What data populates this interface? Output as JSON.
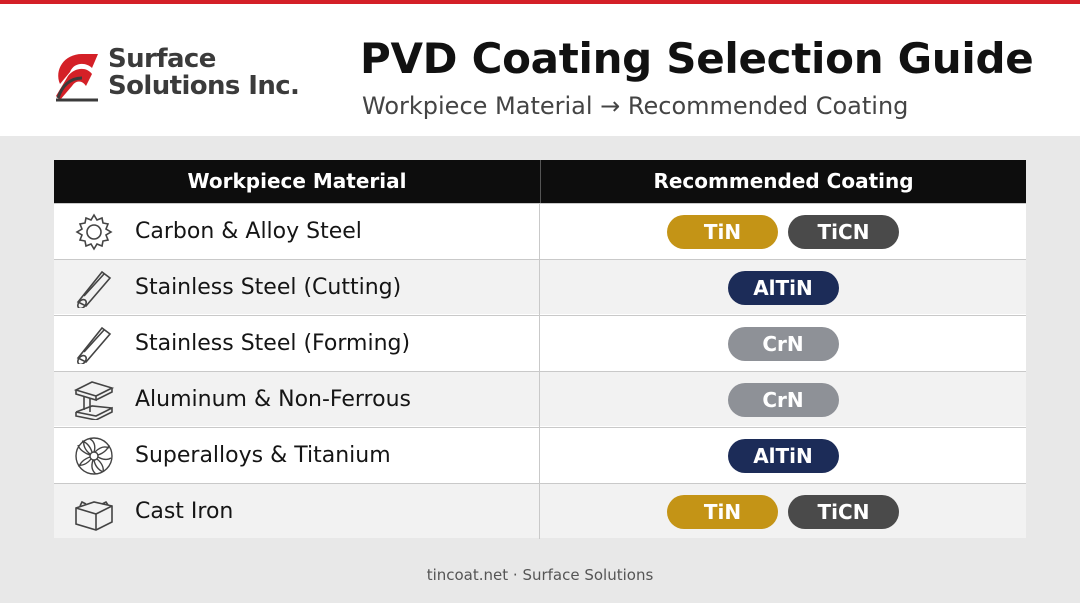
{
  "brand": {
    "name_line1": "Surface",
    "name_line2": "Solutions Inc.",
    "logo_color": "#d42027"
  },
  "header": {
    "title": "PVD Coating Selection Guide",
    "subtitle": "Workpiece Material → Recommended Coating"
  },
  "table": {
    "col_material": "Workpiece Material",
    "col_coating": "Recommended Coating",
    "rows": [
      {
        "icon": "gear-icon",
        "material": "Carbon & Alloy Steel",
        "coatings": [
          "TiN",
          "TiCN"
        ]
      },
      {
        "icon": "rod-icon",
        "material": "Stainless Steel (Cutting)",
        "coatings": [
          "AlTiN"
        ]
      },
      {
        "icon": "rod-icon",
        "material": "Stainless Steel (Forming)",
        "coatings": [
          "CrN"
        ]
      },
      {
        "icon": "i-beam-icon",
        "material": "Aluminum & Non-Ferrous",
        "coatings": [
          "CrN"
        ]
      },
      {
        "icon": "turbine-icon",
        "material": "Superalloys & Titanium",
        "coatings": [
          "AlTiN"
        ]
      },
      {
        "icon": "block-icon",
        "material": "Cast Iron",
        "coatings": [
          "TiN",
          "TiCN"
        ]
      }
    ]
  },
  "coating_colors": {
    "TiN": "#c49416",
    "TiCN": "#4a4a4a",
    "AlTiN": "#1c2c58",
    "CrN": "#8e9197"
  },
  "footer": {
    "text": "tincoat.net · Surface Solutions"
  }
}
